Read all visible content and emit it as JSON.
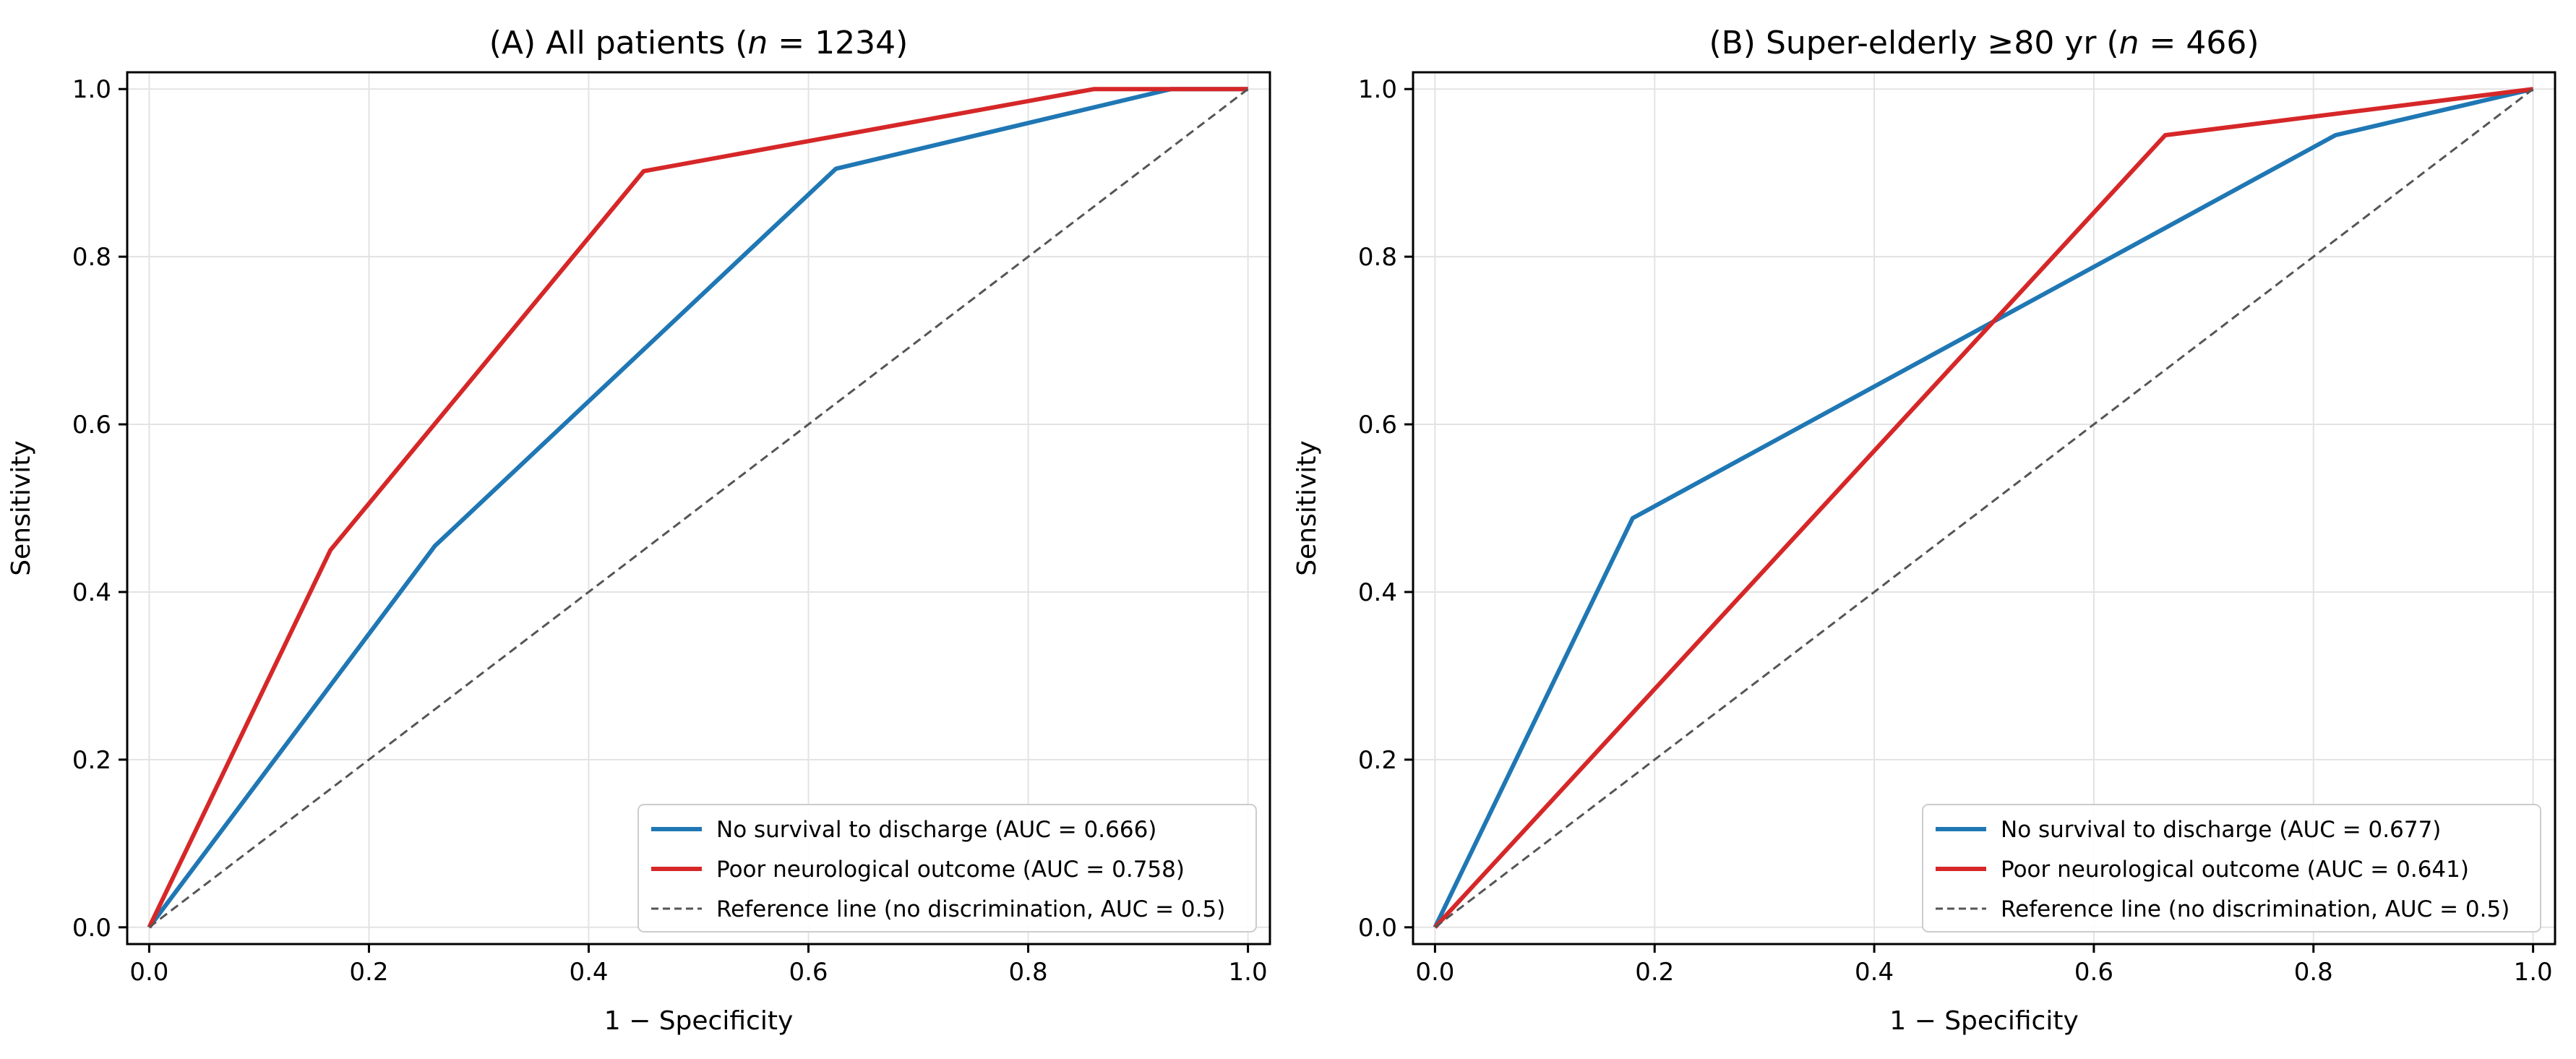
{
  "colors": {
    "series_blue": "#1f77b4",
    "series_red": "#d62728",
    "reference": "#555555",
    "grid": "#e3e3e3"
  },
  "chart_data": [
    {
      "type": "line",
      "title_prefix": "(A) All patients (",
      "title_italic": "n",
      "title_suffix": " = 1234)",
      "xlabel": "1 − Specificity",
      "ylabel": "Sensitivity",
      "xlim": [
        0,
        1
      ],
      "ylim": [
        0,
        1
      ],
      "xticks": [
        "0.0",
        "0.2",
        "0.4",
        "0.6",
        "0.8",
        "1.0"
      ],
      "yticks": [
        "0.0",
        "0.2",
        "0.4",
        "0.6",
        "0.8",
        "1.0"
      ],
      "grid": true,
      "legend_position": "bottom-right",
      "series": [
        {
          "name": "No survival to discharge (AUC = 0.666)",
          "color": "#1f77b4",
          "style": "solid",
          "x": [
            0,
            0.26,
            0.625,
            0.93,
            1.0
          ],
          "y": [
            0,
            0.455,
            0.905,
            1.0,
            1.0
          ]
        },
        {
          "name": "Poor neurological outcome (AUC = 0.758)",
          "color": "#d62728",
          "style": "solid",
          "x": [
            0,
            0.165,
            0.45,
            0.86,
            1.0
          ],
          "y": [
            0,
            0.45,
            0.902,
            1.0,
            1.0
          ]
        },
        {
          "name": "Reference line (no discrimination, AUC = 0.5)",
          "color": "#555555",
          "style": "dashed",
          "x": [
            0,
            1
          ],
          "y": [
            0,
            1
          ]
        }
      ]
    },
    {
      "type": "line",
      "title_prefix": "(B) Super-elderly ≥80 yr (",
      "title_italic": "n",
      "title_suffix": " = 466)",
      "xlabel": "1 − Specificity",
      "ylabel": "Sensitivity",
      "xlim": [
        0,
        1
      ],
      "ylim": [
        0,
        1
      ],
      "xticks": [
        "0.0",
        "0.2",
        "0.4",
        "0.6",
        "0.8",
        "1.0"
      ],
      "yticks": [
        "0.0",
        "0.2",
        "0.4",
        "0.6",
        "0.8",
        "1.0"
      ],
      "grid": true,
      "legend_position": "bottom-right",
      "series": [
        {
          "name": "No survival to discharge (AUC = 0.677)",
          "color": "#1f77b4",
          "style": "solid",
          "x": [
            0,
            0.18,
            0.82,
            1.0
          ],
          "y": [
            0,
            0.488,
            0.945,
            1.0
          ]
        },
        {
          "name": "Poor neurological outcome (AUC = 0.641)",
          "color": "#d62728",
          "style": "solid",
          "x": [
            0,
            0.665,
            1.0
          ],
          "y": [
            0,
            0.945,
            1.0
          ]
        },
        {
          "name": "Reference line (no discrimination, AUC = 0.5)",
          "color": "#555555",
          "style": "dashed",
          "x": [
            0,
            1
          ],
          "y": [
            0,
            1
          ]
        }
      ]
    }
  ]
}
